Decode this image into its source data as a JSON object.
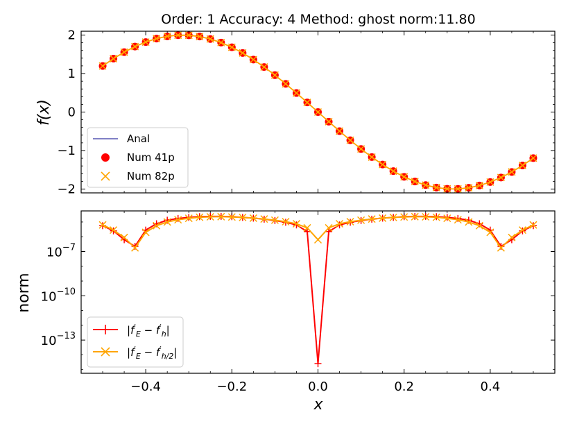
{
  "figure": {
    "title": "Order: 1 Accuracy: 4 Method: ghost norm:11.80"
  },
  "chart_data": [
    {
      "type": "line",
      "panel": "top",
      "ylabel": "f(x)",
      "xlim": [
        -0.55,
        0.55
      ],
      "ylim": [
        -2.1,
        2.1
      ],
      "yticks": [
        -2,
        -1,
        0,
        1,
        2
      ],
      "ytick_labels": [
        "−2",
        "−1",
        "0",
        "1",
        "2"
      ],
      "function": "-2*sin(5*x)",
      "legend_position": "lower-left",
      "series": [
        {
          "name": "Anal",
          "style": "line",
          "color": "#00008b",
          "n_points": 200
        },
        {
          "name": "Num 41p",
          "style": "circle-marker",
          "color": "#ff0000",
          "n_points": 41
        },
        {
          "name": "Num 82p",
          "style": "x-marker",
          "color": "#ffa500",
          "n_points": 41
        }
      ]
    },
    {
      "type": "line",
      "panel": "bottom",
      "scale": "log",
      "ylabel": "norm",
      "xlabel": "x",
      "xlim": [
        -0.55,
        0.55
      ],
      "ylim_log10": [
        -15.25,
        -4.25
      ],
      "yticks_log10": [
        -7,
        -10,
        -13
      ],
      "ytick_labels": [
        {
          "base": "10",
          "exp": "−7"
        },
        {
          "base": "10",
          "exp": "−10"
        },
        {
          "base": "10",
          "exp": "−13"
        }
      ],
      "xticks": [
        -0.4,
        -0.2,
        0.0,
        0.2,
        0.4
      ],
      "xtick_labels": [
        "−0.4",
        "−0.2",
        "0.0",
        "0.2",
        "0.4"
      ],
      "legend_position": "lower-left",
      "x": [
        -0.5,
        -0.475,
        -0.45,
        -0.425,
        -0.4,
        -0.375,
        -0.35,
        -0.325,
        -0.3,
        -0.275,
        -0.25,
        -0.225,
        -0.2,
        -0.175,
        -0.15,
        -0.125,
        -0.1,
        -0.075,
        -0.05,
        -0.025,
        0.0,
        0.025,
        0.05,
        0.075,
        0.1,
        0.125,
        0.15,
        0.175,
        0.2,
        0.225,
        0.25,
        0.275,
        0.3,
        0.325,
        0.35,
        0.375,
        0.4,
        0.425,
        0.45,
        0.475,
        0.5
      ],
      "series": [
        {
          "name": "|f'_E − f'_h|",
          "color": "#ff0000",
          "marker": "plus",
          "log10_values": [
            -5.25,
            -5.6,
            -6.2,
            -6.65,
            -5.55,
            -5.12,
            -4.88,
            -4.76,
            -4.69,
            -4.64,
            -4.62,
            -4.62,
            -4.64,
            -4.69,
            -4.74,
            -4.81,
            -4.9,
            -5.02,
            -5.2,
            -5.65,
            -14.6,
            -5.65,
            -5.2,
            -5.02,
            -4.9,
            -4.81,
            -4.74,
            -4.69,
            -4.64,
            -4.62,
            -4.62,
            -4.64,
            -4.69,
            -4.76,
            -4.88,
            -5.12,
            -5.55,
            -6.65,
            -6.2,
            -5.6,
            -5.25
          ]
        },
        {
          "name": "|f'_E − f'_{h/2}|",
          "color": "#ffa500",
          "marker": "x",
          "log10_values": [
            -5.2,
            -5.55,
            -6.05,
            -6.75,
            -5.7,
            -5.25,
            -5.0,
            -4.85,
            -4.75,
            -4.68,
            -4.65,
            -4.64,
            -4.66,
            -4.69,
            -4.74,
            -4.8,
            -4.88,
            -4.98,
            -5.12,
            -5.4,
            -6.2,
            -5.4,
            -5.12,
            -4.98,
            -4.88,
            -4.8,
            -4.74,
            -4.69,
            -4.66,
            -4.64,
            -4.65,
            -4.68,
            -4.75,
            -4.85,
            -5.0,
            -5.25,
            -5.7,
            -6.75,
            -6.05,
            -5.55,
            -5.2
          ]
        }
      ]
    }
  ]
}
